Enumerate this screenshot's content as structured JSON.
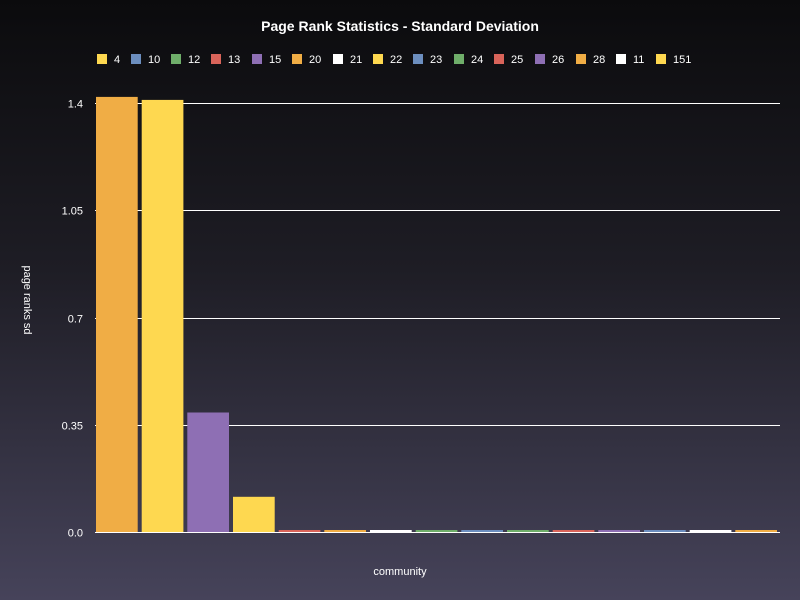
{
  "chart_data": {
    "type": "bar",
    "title": "Page Rank Statistics - Standard Deviation",
    "xlabel": "community",
    "ylabel": "page ranks sd",
    "ylim": [
      0,
      1.4
    ],
    "yticks": [
      "0.0",
      "0.35",
      "0.7",
      "1.05",
      "1.4"
    ],
    "yticks_values": [
      0,
      0.35,
      0.7,
      1.05,
      1.4
    ],
    "grid": true,
    "legend_position": "top",
    "series": [
      {
        "name": "4",
        "value": 1.42,
        "color": "#f0ad45"
      },
      {
        "name": "10",
        "value": 1.41,
        "color": "#fed850"
      },
      {
        "name": "12",
        "value": 0.39,
        "color": "#8e6fb4"
      },
      {
        "name": "13",
        "value": 0.115,
        "color": "#fed850"
      },
      {
        "name": "15",
        "value": 0.004,
        "color": "#d9645a"
      },
      {
        "name": "20",
        "value": 0.004,
        "color": "#f0ad45"
      },
      {
        "name": "21",
        "value": 0.004,
        "color": "#ffffff"
      },
      {
        "name": "22",
        "value": 0.004,
        "color": "#6fae6a"
      },
      {
        "name": "23",
        "value": 0.004,
        "color": "#6c8ebf"
      },
      {
        "name": "24",
        "value": 0.004,
        "color": "#6fae6a"
      },
      {
        "name": "25",
        "value": 0.004,
        "color": "#d9645a"
      },
      {
        "name": "26",
        "value": 0.004,
        "color": "#8e6fb4"
      },
      {
        "name": "28",
        "value": 0.004,
        "color": "#6c8ebf"
      },
      {
        "name": "11",
        "value": 0.004,
        "color": "#ffffff"
      },
      {
        "name": "151",
        "value": 0.004,
        "color": "#f0ad45"
      }
    ],
    "legend": [
      {
        "name": "4",
        "color": "#fed850"
      },
      {
        "name": "10",
        "color": "#6c8ebf"
      },
      {
        "name": "12",
        "color": "#6fae6a"
      },
      {
        "name": "13",
        "color": "#d9645a"
      },
      {
        "name": "15",
        "color": "#8e6fb4"
      },
      {
        "name": "20",
        "color": "#f0ad45"
      },
      {
        "name": "21",
        "color": "#ffffff"
      },
      {
        "name": "22",
        "color": "#fed850"
      },
      {
        "name": "23",
        "color": "#6c8ebf"
      },
      {
        "name": "24",
        "color": "#6fae6a"
      },
      {
        "name": "25",
        "color": "#d9645a"
      },
      {
        "name": "26",
        "color": "#8e6fb4"
      },
      {
        "name": "28",
        "color": "#f0ad45"
      },
      {
        "name": "11",
        "color": "#ffffff"
      },
      {
        "name": "151",
        "color": "#fed850"
      }
    ]
  }
}
